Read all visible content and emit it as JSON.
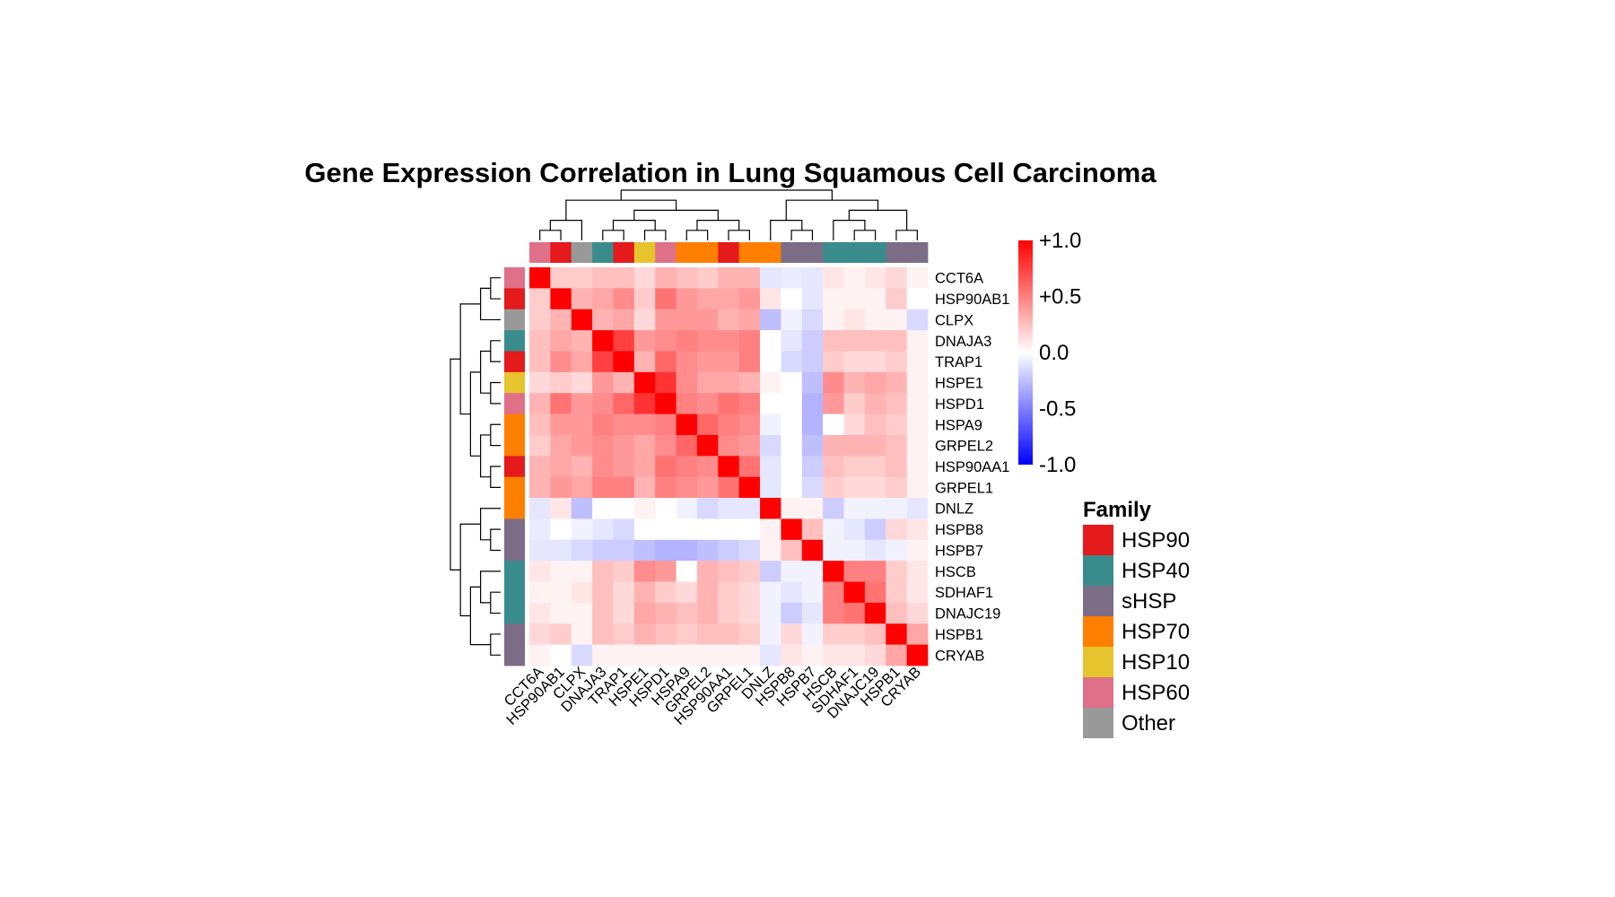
{
  "chart_data": {
    "type": "heatmap",
    "title": "Gene Expression Correlation in Lung Squamous Cell Carcinoma",
    "genes": [
      "CCT6A",
      "HSP90AB1",
      "CLPX",
      "DNAJA3",
      "TRAP1",
      "HSPE1",
      "HSPD1",
      "HSPA9",
      "GRPEL2",
      "HSP90AA1",
      "GRPEL1",
      "DNLZ",
      "HSPB8",
      "HSPB7",
      "HSCB",
      "SDHAF1",
      "DNAJC19",
      "HSPB1",
      "CRYAB"
    ],
    "gene_family": [
      "HSP60",
      "HSP90",
      "Other",
      "HSP40",
      "HSP90",
      "HSP10",
      "HSP60",
      "HSP70",
      "HSP70",
      "HSP90",
      "HSP70",
      "HSP70",
      "sHSP",
      "sHSP",
      "HSP40",
      "HSP40",
      "HSP40",
      "sHSP",
      "sHSP"
    ],
    "top_annotation_family": [
      "HSP60",
      "HSP90",
      "Other",
      "HSP40",
      "HSP90",
      "HSP10",
      "HSP60",
      "HSP70",
      "HSP70",
      "HSP90",
      "HSP70",
      "HSP70",
      "sHSP",
      "sHSP",
      "HSP40",
      "HSP40",
      "HSP40",
      "sHSP",
      "sHSP"
    ],
    "matrix": [
      [
        1.0,
        0.2,
        0.2,
        0.25,
        0.25,
        0.15,
        0.3,
        0.25,
        0.2,
        0.3,
        0.3,
        -0.1,
        -0.08,
        -0.1,
        0.1,
        0.05,
        0.1,
        0.15,
        0.05
      ],
      [
        0.2,
        1.0,
        0.3,
        0.35,
        0.45,
        0.2,
        0.55,
        0.4,
        0.35,
        0.35,
        0.4,
        0.1,
        0.0,
        -0.1,
        0.05,
        0.05,
        0.05,
        0.2,
        0.0
      ],
      [
        0.2,
        0.3,
        1.0,
        0.3,
        0.35,
        0.15,
        0.4,
        0.4,
        0.4,
        0.3,
        0.35,
        -0.25,
        -0.05,
        -0.15,
        0.05,
        0.1,
        0.05,
        0.05,
        -0.15
      ],
      [
        0.25,
        0.35,
        0.3,
        1.0,
        0.75,
        0.4,
        0.45,
        0.5,
        0.45,
        0.45,
        0.5,
        0.0,
        -0.1,
        -0.2,
        0.25,
        0.25,
        0.25,
        0.25,
        0.05
      ],
      [
        0.25,
        0.45,
        0.35,
        0.75,
        1.0,
        0.3,
        0.6,
        0.45,
        0.4,
        0.4,
        0.5,
        0.0,
        -0.15,
        -0.2,
        0.2,
        0.15,
        0.15,
        0.2,
        0.05
      ],
      [
        0.15,
        0.2,
        0.15,
        0.4,
        0.3,
        1.0,
        0.8,
        0.45,
        0.35,
        0.35,
        0.3,
        0.05,
        0.0,
        -0.25,
        0.45,
        0.3,
        0.35,
        0.3,
        0.05
      ],
      [
        0.3,
        0.55,
        0.4,
        0.45,
        0.6,
        0.8,
        1.0,
        0.5,
        0.45,
        0.55,
        0.5,
        0.0,
        0.0,
        -0.3,
        0.4,
        0.2,
        0.3,
        0.25,
        0.05
      ],
      [
        0.25,
        0.4,
        0.4,
        0.5,
        0.45,
        0.45,
        0.5,
        1.0,
        0.6,
        0.5,
        0.45,
        -0.05,
        0.0,
        -0.3,
        0.0,
        0.15,
        0.25,
        0.2,
        0.05
      ],
      [
        0.2,
        0.35,
        0.4,
        0.45,
        0.4,
        0.35,
        0.45,
        0.6,
        1.0,
        0.45,
        0.4,
        -0.15,
        0.0,
        -0.25,
        0.3,
        0.3,
        0.3,
        0.25,
        0.05
      ],
      [
        0.3,
        0.35,
        0.3,
        0.45,
        0.4,
        0.35,
        0.55,
        0.5,
        0.45,
        1.0,
        0.55,
        -0.1,
        0.0,
        -0.2,
        0.25,
        0.2,
        0.2,
        0.25,
        0.05
      ],
      [
        0.3,
        0.4,
        0.35,
        0.5,
        0.5,
        0.3,
        0.5,
        0.45,
        0.4,
        0.55,
        1.0,
        -0.1,
        0.0,
        -0.15,
        0.2,
        0.15,
        0.15,
        0.2,
        0.05
      ],
      [
        -0.1,
        0.1,
        -0.25,
        0.0,
        0.0,
        0.05,
        0.0,
        -0.05,
        -0.15,
        -0.1,
        -0.1,
        1.0,
        0.05,
        0.05,
        -0.2,
        -0.05,
        -0.05,
        -0.05,
        -0.1
      ],
      [
        -0.08,
        0.0,
        -0.05,
        -0.1,
        -0.15,
        0.0,
        0.0,
        0.0,
        0.0,
        0.0,
        0.0,
        0.05,
        1.0,
        0.25,
        -0.05,
        -0.1,
        -0.2,
        0.15,
        0.1
      ],
      [
        -0.1,
        -0.1,
        -0.15,
        -0.2,
        -0.2,
        -0.25,
        -0.3,
        -0.3,
        -0.25,
        -0.2,
        -0.15,
        0.05,
        0.25,
        1.0,
        -0.05,
        -0.05,
        -0.1,
        -0.05,
        0.05
      ],
      [
        0.1,
        0.05,
        0.05,
        0.25,
        0.2,
        0.45,
        0.4,
        0.0,
        0.3,
        0.25,
        0.2,
        -0.2,
        -0.05,
        -0.05,
        1.0,
        0.5,
        0.5,
        0.2,
        0.1
      ],
      [
        0.05,
        0.05,
        0.1,
        0.25,
        0.15,
        0.3,
        0.2,
        0.15,
        0.3,
        0.2,
        0.15,
        -0.05,
        -0.1,
        -0.05,
        0.5,
        1.0,
        0.55,
        0.2,
        0.1
      ],
      [
        0.1,
        0.05,
        0.05,
        0.25,
        0.15,
        0.35,
        0.3,
        0.25,
        0.3,
        0.2,
        0.15,
        -0.05,
        -0.2,
        -0.1,
        0.5,
        0.55,
        1.0,
        0.25,
        0.15
      ],
      [
        0.15,
        0.2,
        0.05,
        0.25,
        0.2,
        0.3,
        0.25,
        0.2,
        0.25,
        0.25,
        0.2,
        -0.05,
        0.15,
        -0.05,
        0.2,
        0.2,
        0.25,
        1.0,
        0.35
      ],
      [
        0.05,
        0.0,
        -0.15,
        0.05,
        0.05,
        0.05,
        0.05,
        0.05,
        0.05,
        0.05,
        0.05,
        -0.1,
        0.1,
        0.05,
        0.1,
        0.1,
        0.15,
        0.35,
        1.0
      ]
    ],
    "color_scale": {
      "min": -1.0,
      "max": 1.0,
      "low_color": "#0000ff",
      "mid_color": "#ffffff",
      "high_color": "#ff0000",
      "tick_labels": [
        "+1.0",
        "+0.5",
        "0.0",
        "-0.5",
        "-1.0"
      ],
      "tick_values": [
        1.0,
        0.5,
        0.0,
        -0.5,
        -1.0
      ]
    },
    "legend": {
      "title": "Family",
      "entries": [
        {
          "name": "HSP90",
          "color": "#e41a1c"
        },
        {
          "name": "HSP40",
          "color": "#3a8c8c"
        },
        {
          "name": "sHSP",
          "color": "#7b6d85"
        },
        {
          "name": "HSP70",
          "color": "#ff7f00"
        },
        {
          "name": "HSP10",
          "color": "#e6c42e"
        },
        {
          "name": "HSP60",
          "color": "#df7088"
        },
        {
          "name": "Other",
          "color": "#999999"
        }
      ]
    }
  }
}
